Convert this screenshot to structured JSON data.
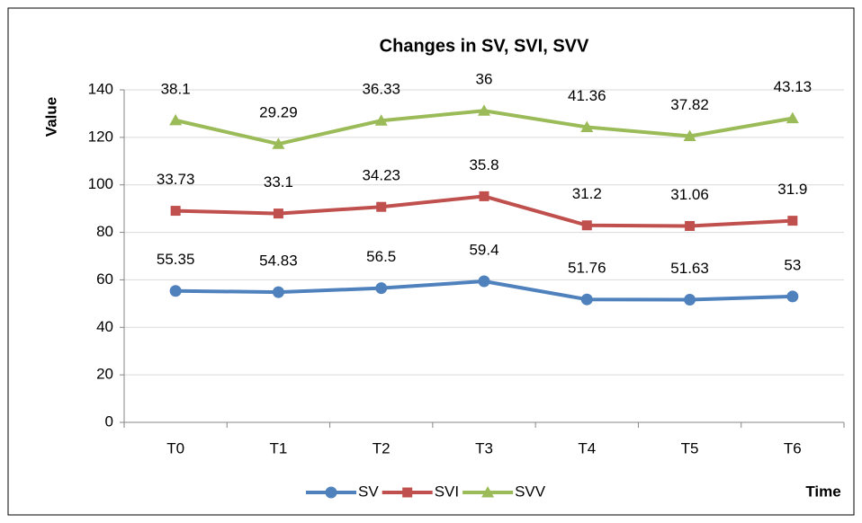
{
  "chart_data": {
    "type": "line",
    "stacked": true,
    "title": "Changes in SV, SVI, SVV",
    "y_label": "Value",
    "x_label": "Time",
    "categories": [
      "T0",
      "T1",
      "T2",
      "T3",
      "T4",
      "T5",
      "T6"
    ],
    "series": [
      {
        "name": "SV",
        "color": "#4f81bd",
        "marker": "circle",
        "values": [
          55.35,
          54.83,
          56.5,
          59.4,
          51.76,
          51.63,
          53
        ]
      },
      {
        "name": "SVI",
        "color": "#c0504d",
        "marker": "square",
        "values": [
          33.73,
          33.1,
          34.23,
          35.8,
          31.2,
          31.06,
          31.9
        ]
      },
      {
        "name": "SVV",
        "color": "#9bbb59",
        "marker": "triangle",
        "values": [
          38.1,
          29.29,
          36.33,
          36,
          41.36,
          37.82,
          43.13
        ]
      }
    ],
    "ylim": [
      0,
      140
    ],
    "yticks": [
      0,
      20,
      40,
      60,
      80,
      100,
      120,
      140
    ],
    "grid": true,
    "legend": "bottom"
  }
}
